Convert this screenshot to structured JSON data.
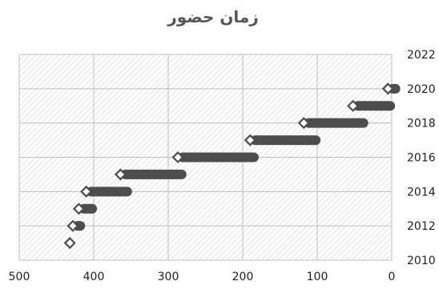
{
  "chart_data": {
    "type": "bar",
    "orientation": "horizontal",
    "title": "زمان حضور",
    "xlabel": "",
    "ylabel": "",
    "x_reversed": true,
    "xlim": [
      0,
      500
    ],
    "ylim": [
      2010,
      2022
    ],
    "y_axis_position": "right",
    "x_ticks": [
      500,
      400,
      300,
      200,
      100,
      0
    ],
    "y_ticks": [
      2022,
      2020,
      2018,
      2016,
      2014,
      2012,
      2010
    ],
    "grid": true,
    "legend": "none",
    "colors": {
      "bar": "#4d4d4d",
      "grid": "#bdbdbd",
      "hatch": "#d0d0d0",
      "axis_text": "#222222",
      "title_text": "#555555",
      "marker_fill": "#ffffff"
    },
    "series": [
      {
        "points": [
          {
            "year": 2011,
            "start": 432,
            "end": 432
          },
          {
            "year": 2012,
            "start": 428,
            "end": 418
          },
          {
            "year": 2013,
            "start": 420,
            "end": 402
          },
          {
            "year": 2014,
            "start": 410,
            "end": 355
          },
          {
            "year": 2015,
            "start": 364,
            "end": 282
          },
          {
            "year": 2016,
            "start": 287,
            "end": 185
          },
          {
            "year": 2017,
            "start": 190,
            "end": 102
          },
          {
            "year": 2018,
            "start": 118,
            "end": 38
          },
          {
            "year": 2019,
            "start": 52,
            "end": 2
          },
          {
            "year": 2020,
            "start": 5,
            "end": -5
          }
        ]
      }
    ]
  }
}
